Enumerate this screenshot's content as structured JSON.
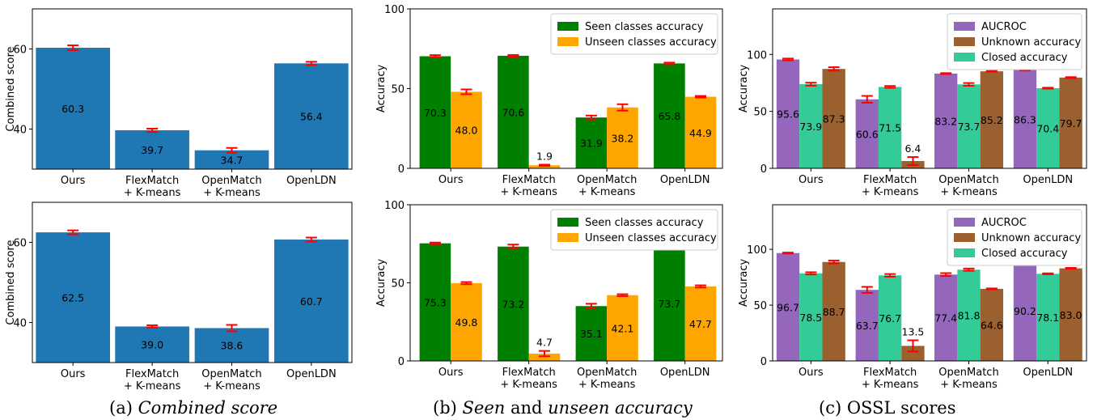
{
  "captions": {
    "a": {
      "prefix": "(a) ",
      "italic": "Combined score",
      "rest": ""
    },
    "b": {
      "prefix": "(b) ",
      "italic": "Seen",
      "mid": " and ",
      "italic2": "unseen accuracy",
      "rest": ""
    },
    "c": {
      "prefix": "(c) OSSL scores"
    }
  },
  "colors": {
    "blue": "#1f77b4",
    "green": "#008000",
    "orange": "#ffa500",
    "purple": "#9467bd",
    "teal": "#33cc99",
    "brown": "#9b6030",
    "error": "#ff0000"
  },
  "chart_data": [
    {
      "id": "a-top",
      "type": "bar",
      "ylabel": "Combined score",
      "ylim": [
        30,
        70
      ],
      "yticks": [
        40,
        60
      ],
      "categories": [
        "Ours",
        "FlexMatch\n+ K-means",
        "OpenMatch\n+ K-means",
        "OpenLDN"
      ],
      "series": [
        {
          "values": [
            60.3,
            39.7,
            34.7,
            56.4
          ],
          "errors": [
            0.6,
            0.4,
            0.6,
            0.4
          ],
          "color": "#1f77b4"
        }
      ],
      "legend": []
    },
    {
      "id": "b-top",
      "type": "bar",
      "ylabel": "Accuracy",
      "ylim": [
        0,
        100
      ],
      "yticks": [
        0,
        50,
        100
      ],
      "categories": [
        "Ours",
        "FlexMatch\n+ K-means",
        "OpenMatch\n+ K-means",
        "OpenLDN"
      ],
      "series": [
        {
          "name": "Seen classes accuracy",
          "values": [
            70.3,
            70.6,
            31.9,
            65.8
          ],
          "errors": [
            0.7,
            0.5,
            1.2,
            0.5
          ],
          "color": "#008000"
        },
        {
          "name": "Unseen classes accuracy",
          "values": [
            48.0,
            1.9,
            38.2,
            44.9
          ],
          "errors": [
            1.5,
            0.4,
            2.0,
            0.5
          ],
          "color": "#ffa500"
        }
      ],
      "legend": [
        "Seen classes accuracy",
        "Unseen classes accuracy"
      ],
      "legend_position": "top-right"
    },
    {
      "id": "c-top",
      "type": "bar",
      "ylabel": "Accuracy",
      "ylim": [
        0,
        140
      ],
      "yticks": [
        0,
        50,
        100
      ],
      "categories": [
        "Ours",
        "FlexMatch\n+ K-means",
        "OpenMatch\n+ K-means",
        "OpenLDN"
      ],
      "series": [
        {
          "name": "AUCROC",
          "values": [
            95.6,
            60.6,
            83.2,
            86.3
          ],
          "errors": [
            0.8,
            3.0,
            0.4,
            0.4
          ],
          "color": "#9467bd"
        },
        {
          "name": "Closed accuracy",
          "values": [
            73.9,
            71.5,
            73.7,
            70.4
          ],
          "errors": [
            1.3,
            0.8,
            1.2,
            0.4
          ],
          "color": "#33cc99"
        },
        {
          "name": "Unknown accuracy",
          "values": [
            87.3,
            6.4,
            85.2,
            79.7
          ],
          "errors": [
            1.5,
            3.5,
            0.3,
            0.4
          ],
          "color": "#9b6030"
        }
      ],
      "legend": [
        "AUCROC",
        "Unknown accuracy",
        "Closed accuracy"
      ],
      "legend_position": "top-right"
    },
    {
      "id": "a-bottom",
      "type": "bar",
      "ylabel": "Combined score",
      "ylim": [
        30,
        70
      ],
      "yticks": [
        40,
        60
      ],
      "categories": [
        "Ours",
        "FlexMatch\n+ K-means",
        "OpenMatch\n+ K-means",
        "OpenLDN"
      ],
      "series": [
        {
          "values": [
            62.5,
            39.0,
            38.6,
            60.7
          ],
          "errors": [
            0.5,
            0.3,
            0.8,
            0.5
          ],
          "color": "#1f77b4"
        }
      ],
      "legend": []
    },
    {
      "id": "b-bottom",
      "type": "bar",
      "ylabel": "Accuracy",
      "ylim": [
        0,
        100
      ],
      "yticks": [
        0,
        50,
        100
      ],
      "categories": [
        "Ours",
        "FlexMatch\n+ K-means",
        "OpenMatch\n+ K-means",
        "OpenLDN"
      ],
      "series": [
        {
          "name": "Seen classes accuracy",
          "values": [
            75.3,
            73.2,
            35.1,
            73.7
          ],
          "errors": [
            0.5,
            1.3,
            1.5,
            0.4
          ],
          "color": "#008000"
        },
        {
          "name": "Unseen classes accuracy",
          "values": [
            49.8,
            4.7,
            42.1,
            47.7
          ],
          "errors": [
            0.7,
            1.7,
            0.6,
            0.7
          ],
          "color": "#ffa500"
        }
      ],
      "legend": [
        "Seen classes accuracy",
        "Unseen classes accuracy"
      ],
      "legend_position": "top-right"
    },
    {
      "id": "c-bottom",
      "type": "bar",
      "ylabel": "Accuracy",
      "ylim": [
        0,
        140
      ],
      "yticks": [
        0,
        50,
        100
      ],
      "categories": [
        "Ours",
        "FlexMatch\n+ K-means",
        "OpenMatch\n+ K-means",
        "OpenLDN"
      ],
      "series": [
        {
          "name": "AUCROC",
          "values": [
            96.7,
            63.7,
            77.4,
            90.2
          ],
          "errors": [
            0.4,
            2.7,
            1.3,
            0.4
          ],
          "color": "#9467bd"
        },
        {
          "name": "Closed accuracy",
          "values": [
            78.5,
            76.7,
            81.8,
            78.1
          ],
          "errors": [
            1.0,
            1.2,
            1.0,
            0.4
          ],
          "color": "#33cc99"
        },
        {
          "name": "Unknown accuracy",
          "values": [
            88.7,
            13.5,
            64.6,
            83.0
          ],
          "errors": [
            1.3,
            5.0,
            0.4,
            0.4
          ],
          "color": "#9b6030"
        }
      ],
      "legend": [
        "AUCROC",
        "Unknown accuracy",
        "Closed accuracy"
      ],
      "legend_position": "top-right"
    }
  ]
}
